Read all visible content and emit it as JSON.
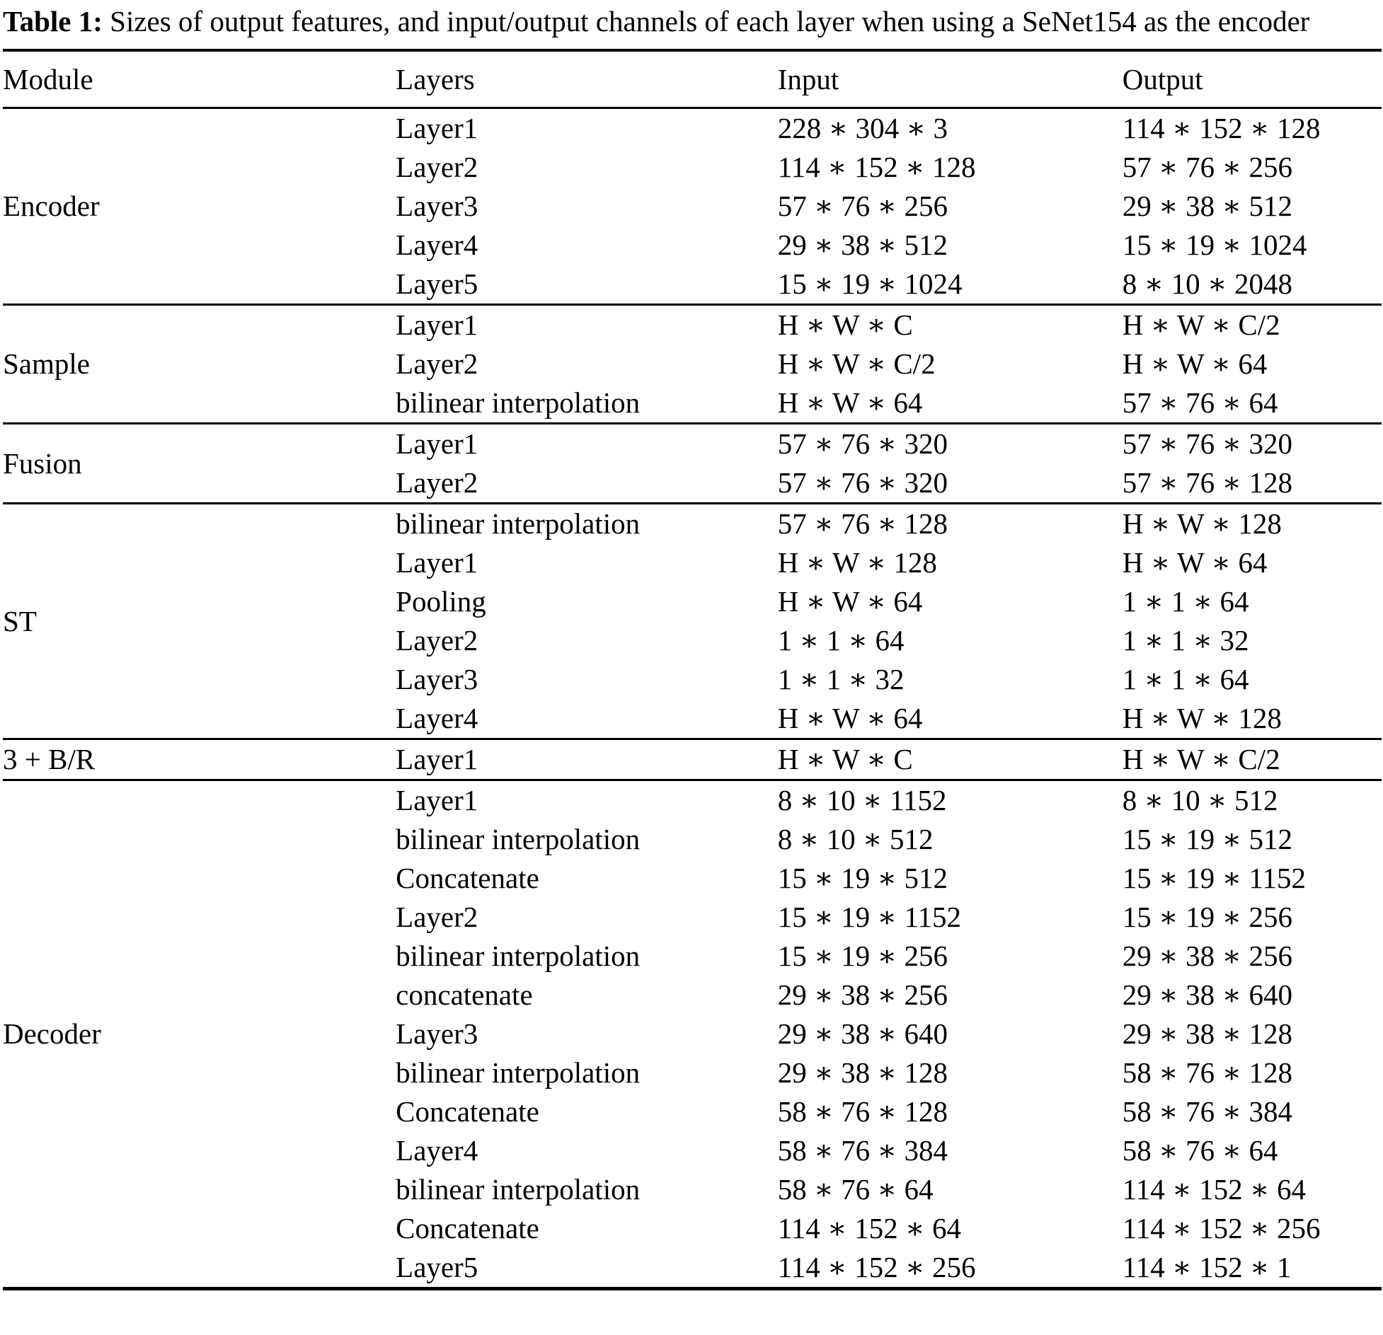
{
  "title": {
    "label": "Table 1:",
    "text": "Sizes of output features, and input/output channels of each layer when using a SeNet154 as the encoder"
  },
  "table": {
    "columns": [
      "Module",
      "Layers",
      "Input",
      "Output"
    ],
    "sections": [
      {
        "module": "Encoder",
        "rows": [
          {
            "layer": "Layer1",
            "input": "228 ∗ 304 ∗ 3",
            "output": "114 ∗ 152 ∗ 128"
          },
          {
            "layer": "Layer2",
            "input": "114 ∗ 152 ∗ 128",
            "output": "57 ∗ 76 ∗ 256"
          },
          {
            "layer": "Layer3",
            "input": "57 ∗ 76 ∗ 256",
            "output": "29 ∗ 38 ∗ 512"
          },
          {
            "layer": "Layer4",
            "input": "29 ∗ 38 ∗ 512",
            "output": "15 ∗ 19 ∗ 1024"
          },
          {
            "layer": "Layer5",
            "input": "15 ∗ 19 ∗ 1024",
            "output": "8 ∗ 10 ∗ 2048"
          }
        ]
      },
      {
        "module": "Sample",
        "rows": [
          {
            "layer": "Layer1",
            "input": "H ∗ W ∗ C",
            "output": "H ∗ W ∗ C/2"
          },
          {
            "layer": "Layer2",
            "input": "H ∗ W ∗ C/2",
            "output": "H ∗ W ∗ 64"
          },
          {
            "layer": "bilinear interpolation",
            "input": "H ∗ W ∗ 64",
            "output": "57 ∗ 76 ∗ 64"
          }
        ]
      },
      {
        "module": "Fusion",
        "rows": [
          {
            "layer": "Layer1",
            "input": "57 ∗ 76 ∗ 320",
            "output": "57 ∗ 76 ∗ 320"
          },
          {
            "layer": "Layer2",
            "input": "57 ∗ 76 ∗ 320",
            "output": "57 ∗ 76 ∗ 128"
          }
        ]
      },
      {
        "module": "ST",
        "rows": [
          {
            "layer": "bilinear interpolation",
            "input": "57 ∗ 76 ∗ 128",
            "output": "H ∗ W ∗ 128"
          },
          {
            "layer": "Layer1",
            "input": "H ∗ W ∗ 128",
            "output": "H ∗ W ∗ 64"
          },
          {
            "layer": "Pooling",
            "input": "H ∗ W ∗ 64",
            "output": "1 ∗ 1 ∗ 64"
          },
          {
            "layer": "Layer2",
            "input": "1 ∗ 1 ∗ 64",
            "output": "1 ∗ 1 ∗ 32"
          },
          {
            "layer": "Layer3",
            "input": "1 ∗ 1 ∗ 32",
            "output": "1 ∗ 1 ∗ 64"
          },
          {
            "layer": "Layer4",
            "input": "H ∗ W ∗ 64",
            "output": "H ∗ W ∗ 128"
          }
        ]
      },
      {
        "module": "3 + B/R",
        "rows": [
          {
            "layer": "Layer1",
            "input": "H ∗ W ∗ C",
            "output": "H ∗ W ∗ C/2"
          }
        ]
      },
      {
        "module": "Decoder",
        "rows": [
          {
            "layer": "Layer1",
            "input": "8 ∗ 10 ∗ 1152",
            "output": "8 ∗ 10 ∗ 512"
          },
          {
            "layer": "bilinear interpolation",
            "input": "8 ∗ 10 ∗ 512",
            "output": "15 ∗ 19 ∗ 512"
          },
          {
            "layer": "Concatenate",
            "input": "15 ∗ 19 ∗ 512",
            "output": "15 ∗ 19 ∗ 1152"
          },
          {
            "layer": "Layer2",
            "input": "15 ∗ 19 ∗ 1152",
            "output": "15 ∗ 19 ∗ 256"
          },
          {
            "layer": "bilinear interpolation",
            "input": "15 ∗ 19 ∗ 256",
            "output": "29 ∗ 38 ∗ 256"
          },
          {
            "layer": "concatenate",
            "input": "29 ∗ 38 ∗ 256",
            "output": "29 ∗ 38 ∗ 640"
          },
          {
            "layer": "Layer3",
            "input": "29 ∗ 38 ∗ 640",
            "output": "29 ∗ 38 ∗ 128"
          },
          {
            "layer": "bilinear interpolation",
            "input": "29 ∗ 38 ∗ 128",
            "output": "58 ∗ 76 ∗ 128"
          },
          {
            "layer": "Concatenate",
            "input": "58 ∗ 76 ∗ 128",
            "output": "58 ∗ 76 ∗ 384"
          },
          {
            "layer": "Layer4",
            "input": "58 ∗ 76 ∗ 384",
            "output": "58 ∗ 76 ∗ 64"
          },
          {
            "layer": "bilinear interpolation",
            "input": "58 ∗ 76 ∗ 64",
            "output": "114 ∗ 152 ∗ 64"
          },
          {
            "layer": "Concatenate",
            "input": "114 ∗ 152 ∗ 64",
            "output": "114 ∗ 152 ∗ 256"
          },
          {
            "layer": "Layer5",
            "input": "114 ∗ 152 ∗ 256",
            "output": "114 ∗ 152 ∗ 1"
          }
        ]
      }
    ]
  }
}
